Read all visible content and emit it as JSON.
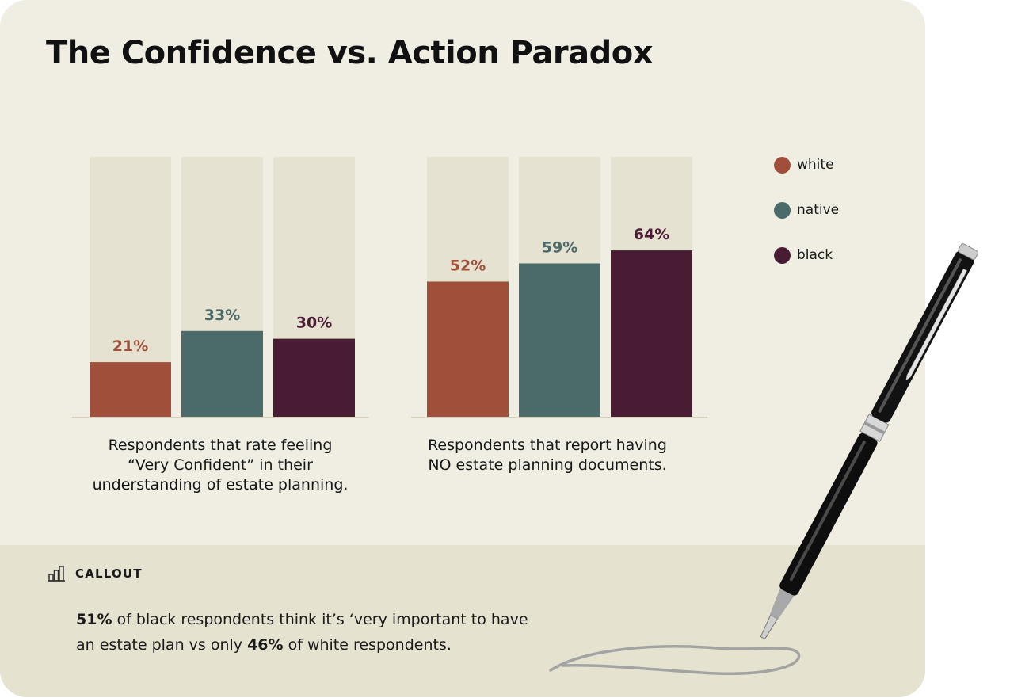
{
  "title": "The Confidence vs. Action Paradox",
  "legend": [
    {
      "label": "white",
      "color": "#a04f3a"
    },
    {
      "label": "native",
      "color": "#4a6b6a"
    },
    {
      "label": "black",
      "color": "#4a1c33"
    }
  ],
  "chart_data": [
    {
      "type": "bar",
      "categories": [
        "white",
        "native",
        "black"
      ],
      "values": [
        21,
        33,
        30
      ],
      "value_labels": [
        "21%",
        "33%",
        "30%"
      ],
      "caption": [
        "Respondents that rate feeling",
        "“Very Confident” in their",
        "understanding of estate planning."
      ],
      "ylim": [
        0,
        100
      ],
      "grid": false,
      "legend_position": "right"
    },
    {
      "type": "bar",
      "categories": [
        "white",
        "native",
        "black"
      ],
      "values": [
        52,
        59,
        64
      ],
      "value_labels": [
        "52%",
        "59%",
        "64%"
      ],
      "caption": [
        "Respondents that report having",
        "NO estate planning documents."
      ],
      "ylim": [
        0,
        100
      ],
      "grid": false,
      "legend_position": "right"
    }
  ],
  "callout": {
    "icon": "bar-chart-icon",
    "label": "CALLOUT",
    "stat1": "51%",
    "text1": " of black respondents think it’s ‘very important to have an estate plan vs only ",
    "stat2": "46%",
    "text2": " of white respondents."
  },
  "pen_icon": "fountain-pen-icon"
}
